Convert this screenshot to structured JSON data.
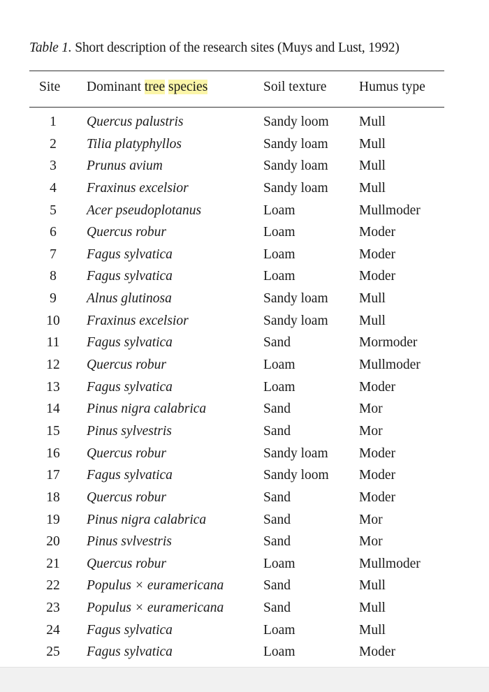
{
  "caption": {
    "label": "Table 1.",
    "text": "Short description of the research sites (Muys and Lust, 1992)"
  },
  "headers": {
    "site": "Site",
    "species_pre": "Dominant ",
    "species_hl1": "tree",
    "species_space": " ",
    "species_hl2": "species",
    "soil": "Soil texture",
    "humus": "Humus type"
  },
  "highlight_color": "#fbf5a8",
  "rows": [
    {
      "site": "1",
      "species": "Quercus palustris",
      "soil": "Sandy loom",
      "humus": "Mull"
    },
    {
      "site": "2",
      "species": "Tilia platyphyllos",
      "soil": "Sandy loam",
      "humus": "Mull"
    },
    {
      "site": "3",
      "species": "Prunus avium",
      "soil": "Sandy loam",
      "humus": "Mull"
    },
    {
      "site": "4",
      "species": "Fraxinus excelsior",
      "soil": "Sandy loam",
      "humus": "Mull"
    },
    {
      "site": "5",
      "species": "Acer pseudoplotanus",
      "soil": "Loam",
      "humus": "Mullmoder"
    },
    {
      "site": "6",
      "species": "Quercus robur",
      "soil": "Loam",
      "humus": "Moder"
    },
    {
      "site": "7",
      "species": "Fagus sylvatica",
      "soil": "Loam",
      "humus": "Moder"
    },
    {
      "site": "8",
      "species": "Fagus sylvatica",
      "soil": "Loam",
      "humus": "Moder"
    },
    {
      "site": "9",
      "species": "Alnus glutinosa",
      "soil": "Sandy loam",
      "humus": "Mull"
    },
    {
      "site": "10",
      "species": "Fraxinus excelsior",
      "soil": "Sandy loam",
      "humus": "Mull"
    },
    {
      "site": "11",
      "species": "Fagus sylvatica",
      "soil": "Sand",
      "humus": "Mormoder"
    },
    {
      "site": "12",
      "species": "Quercus robur",
      "soil": "Loam",
      "humus": "Mullmoder"
    },
    {
      "site": "13",
      "species": "Fagus sylvatica",
      "soil": "Loam",
      "humus": "Moder"
    },
    {
      "site": "14",
      "species": "Pinus nigra calabrica",
      "soil": "Sand",
      "humus": "Mor"
    },
    {
      "site": "15",
      "species": "Pinus sylvestris",
      "soil": "Sand",
      "humus": "Mor"
    },
    {
      "site": "16",
      "species": "Quercus robur",
      "soil": "Sandy loam",
      "humus": "Moder"
    },
    {
      "site": "17",
      "species": "Fagus sylvatica",
      "soil": "Sandy loom",
      "humus": "Moder"
    },
    {
      "site": "18",
      "species": "Quercus robur",
      "soil": "Sand",
      "humus": "Moder"
    },
    {
      "site": "19",
      "species": "Pinus nigra calabrica",
      "soil": "Sand",
      "humus": "Mor"
    },
    {
      "site": "20",
      "species": "Pinus svlvestris",
      "soil": "Sand",
      "humus": "Mor"
    },
    {
      "site": "21",
      "species": "Quercus robur",
      "soil": "Loam",
      "humus": "Mullmoder"
    },
    {
      "site": "22",
      "species": "Populus × euramericana",
      "soil": "Sand",
      "humus": "Mull"
    },
    {
      "site": "23",
      "species": "Populus × euramericana",
      "soil": "Sand",
      "humus": "Mull"
    },
    {
      "site": "24",
      "species": "Fagus sylvatica",
      "soil": "Loam",
      "humus": "Mull"
    },
    {
      "site": "25",
      "species": "Fagus sylvatica",
      "soil": "Loam",
      "humus": "Moder"
    }
  ]
}
